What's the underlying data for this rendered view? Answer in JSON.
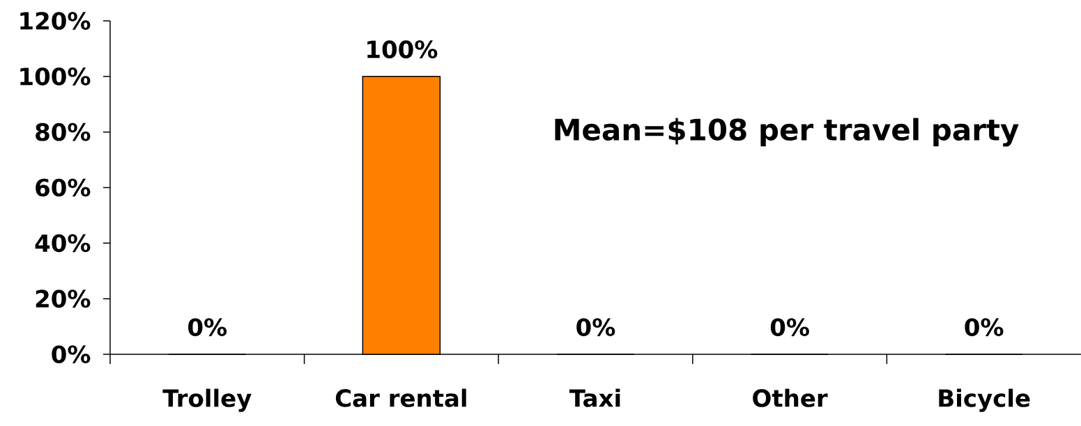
{
  "chart_data": {
    "type": "bar",
    "categories": [
      "Trolley",
      "Car rental",
      "Taxi",
      "Other",
      "Bicycle"
    ],
    "values": [
      0,
      100,
      0,
      0,
      0
    ],
    "color": "#ff7f00",
    "value_labels": [
      "0%",
      "100%",
      "0%",
      "0%",
      "0%"
    ],
    "ylim": [
      0,
      120
    ],
    "yticks": [
      {
        "value": 0,
        "label": "0%"
      },
      {
        "value": 20,
        "label": "20%"
      },
      {
        "value": 40,
        "label": "40%"
      },
      {
        "value": 60,
        "label": "60%"
      },
      {
        "value": 80,
        "label": "80%"
      },
      {
        "value": 100,
        "label": "100%"
      },
      {
        "value": 120,
        "label": "120%"
      }
    ],
    "annotations": [
      "Mean=$108 per travel party"
    ]
  }
}
